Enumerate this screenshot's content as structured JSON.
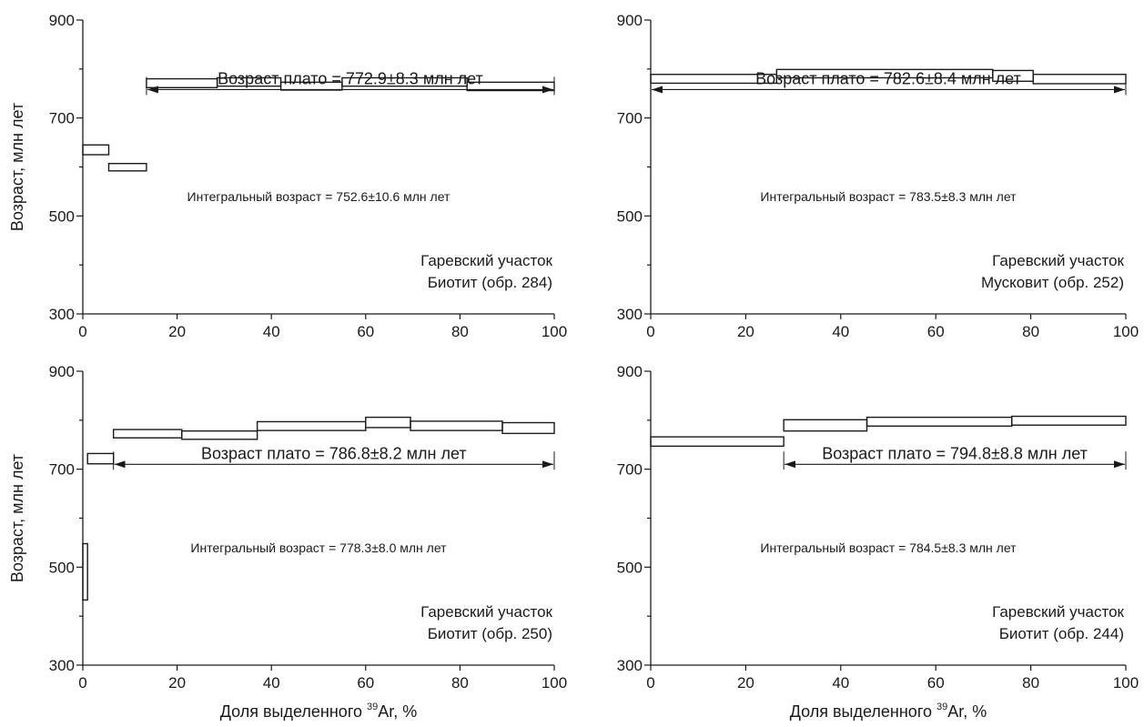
{
  "ylabel": "Возраст,  млн лет",
  "xlabel": {
    "prefix": "Доля выделенного ",
    "sup": "39",
    "suffix": "Ar, %"
  },
  "chart_data": [
    {
      "type": "step",
      "xlim": [
        0,
        100
      ],
      "ylim": [
        300,
        900
      ],
      "xticks": [
        "0",
        "20",
        "40",
        "60",
        "80",
        "100"
      ],
      "yticks": [
        "300",
        "500",
        "700",
        "900"
      ],
      "steps": [
        {
          "x0": 0,
          "x1": 5.5,
          "lo": 625,
          "hi": 645
        },
        {
          "x0": 5.5,
          "x1": 13.5,
          "lo": 592,
          "hi": 607
        },
        {
          "x0": 13.5,
          "x1": 28.5,
          "lo": 762,
          "hi": 780
        },
        {
          "x0": 28.5,
          "x1": 42,
          "lo": 765,
          "hi": 782
        },
        {
          "x0": 42,
          "x1": 55,
          "lo": 757,
          "hi": 773
        },
        {
          "x0": 55,
          "x1": 81.5,
          "lo": 765,
          "hi": 782
        },
        {
          "x0": 81.5,
          "x1": 100,
          "lo": 756,
          "hi": 773
        }
      ],
      "plateau": {
        "x0": 13.5,
        "x1": 100,
        "y": 758,
        "label": "Возраст плато = 772.9±8.3 млн лет"
      },
      "integral_label": "Интегральный возраст = 752.6±10.6 млн лет",
      "site_label": "Гаревский участок",
      "sample_label": "Биотит (обр. 284)"
    },
    {
      "type": "step",
      "xlim": [
        0,
        100
      ],
      "ylim": [
        300,
        900
      ],
      "xticks": [
        "0",
        "20",
        "40",
        "60",
        "80",
        "100"
      ],
      "yticks": [
        "300",
        "500",
        "700",
        "900"
      ],
      "steps": [
        {
          "x0": 0,
          "x1": 26.5,
          "lo": 771,
          "hi": 789
        },
        {
          "x0": 26.5,
          "x1": 72,
          "lo": 782,
          "hi": 799
        },
        {
          "x0": 72,
          "x1": 80.5,
          "lo": 775,
          "hi": 797
        },
        {
          "x0": 80.5,
          "x1": 100,
          "lo": 770,
          "hi": 789
        }
      ],
      "plateau": {
        "x0": 0,
        "x1": 100,
        "y": 758,
        "label": "Возраст плато = 782.6±8.4 млн лет"
      },
      "integral_label": "Интегральный возраст = 783.5±8.3 млн лет",
      "site_label": "Гаревский участок",
      "sample_label": "Мусковит (обр. 252)"
    },
    {
      "type": "step",
      "xlim": [
        0,
        100
      ],
      "ylim": [
        300,
        900
      ],
      "xticks": [
        "0",
        "20",
        "40",
        "60",
        "80",
        "100"
      ],
      "yticks": [
        "300",
        "500",
        "700",
        "900"
      ],
      "steps": [
        {
          "x0": 0,
          "x1": 1,
          "lo": 433,
          "hi": 548
        },
        {
          "x0": 1,
          "x1": 6.5,
          "lo": 711,
          "hi": 732
        },
        {
          "x0": 6.5,
          "x1": 21,
          "lo": 764,
          "hi": 781
        },
        {
          "x0": 21,
          "x1": 37,
          "lo": 761,
          "hi": 778
        },
        {
          "x0": 37,
          "x1": 60,
          "lo": 779,
          "hi": 797
        },
        {
          "x0": 60,
          "x1": 69.5,
          "lo": 785,
          "hi": 806
        },
        {
          "x0": 69.5,
          "x1": 89,
          "lo": 779,
          "hi": 798
        },
        {
          "x0": 89,
          "x1": 100,
          "lo": 773,
          "hi": 795
        }
      ],
      "plateau": {
        "x0": 6.5,
        "x1": 100,
        "y": 710,
        "label": "Возраст плато = 786.8±8.2 млн лет"
      },
      "integral_label": "Интегральный возраст = 778.3±8.0 млн лет",
      "site_label": "Гаревский участок",
      "sample_label": "Биотит (обр. 250)"
    },
    {
      "type": "step",
      "xlim": [
        0,
        100
      ],
      "ylim": [
        300,
        900
      ],
      "xticks": [
        "0",
        "20",
        "40",
        "60",
        "80",
        "100"
      ],
      "yticks": [
        "300",
        "500",
        "700",
        "900"
      ],
      "steps": [
        {
          "x0": 0,
          "x1": 28,
          "lo": 747,
          "hi": 766
        },
        {
          "x0": 28,
          "x1": 45.5,
          "lo": 778,
          "hi": 801
        },
        {
          "x0": 45.5,
          "x1": 76,
          "lo": 788,
          "hi": 806
        },
        {
          "x0": 76,
          "x1": 100,
          "lo": 790,
          "hi": 808
        }
      ],
      "plateau": {
        "x0": 28,
        "x1": 100,
        "y": 710,
        "label": "Возраст плато = 794.8±8.8 млн лет"
      },
      "integral_label": "Интегральный возраст = 784.5±8.3 млн лет",
      "site_label": "Гаревский участок",
      "sample_label": "Биотит (обр. 244)"
    }
  ]
}
